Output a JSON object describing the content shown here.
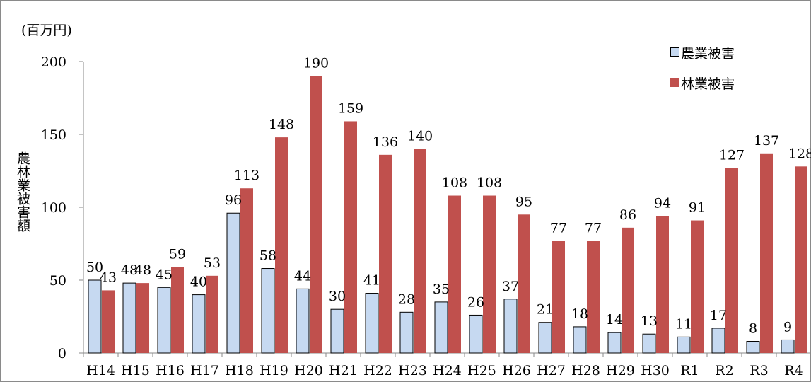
{
  "chart_data": {
    "type": "bar",
    "unit_label": "(百万円)",
    "ylabel": "農林業被害額",
    "xlabel": "",
    "ylim": [
      0,
      200
    ],
    "yticks": [
      0,
      50,
      100,
      150,
      200
    ],
    "grid": false,
    "legend_position": "top-right",
    "categories": [
      "H14",
      "H15",
      "H16",
      "H17",
      "H18",
      "H19",
      "H20",
      "H21",
      "H22",
      "H23",
      "H24",
      "H25",
      "H26",
      "H27",
      "H28",
      "H29",
      "H30",
      "R1",
      "R2",
      "R3",
      "R4"
    ],
    "series": [
      {
        "name": "農業被害",
        "color": "#c6d9f1",
        "stroke": "#000000",
        "values": [
          50,
          48,
          45,
          40,
          96,
          58,
          44,
          30,
          41,
          28,
          35,
          26,
          37,
          21,
          18,
          14,
          13,
          11,
          17,
          8,
          9
        ]
      },
      {
        "name": "林業被害",
        "color": "#c0504d",
        "stroke": "none",
        "values": [
          43,
          48,
          59,
          53,
          113,
          148,
          190,
          159,
          136,
          140,
          108,
          108,
          95,
          77,
          77,
          86,
          94,
          91,
          127,
          137,
          128
        ]
      }
    ]
  }
}
